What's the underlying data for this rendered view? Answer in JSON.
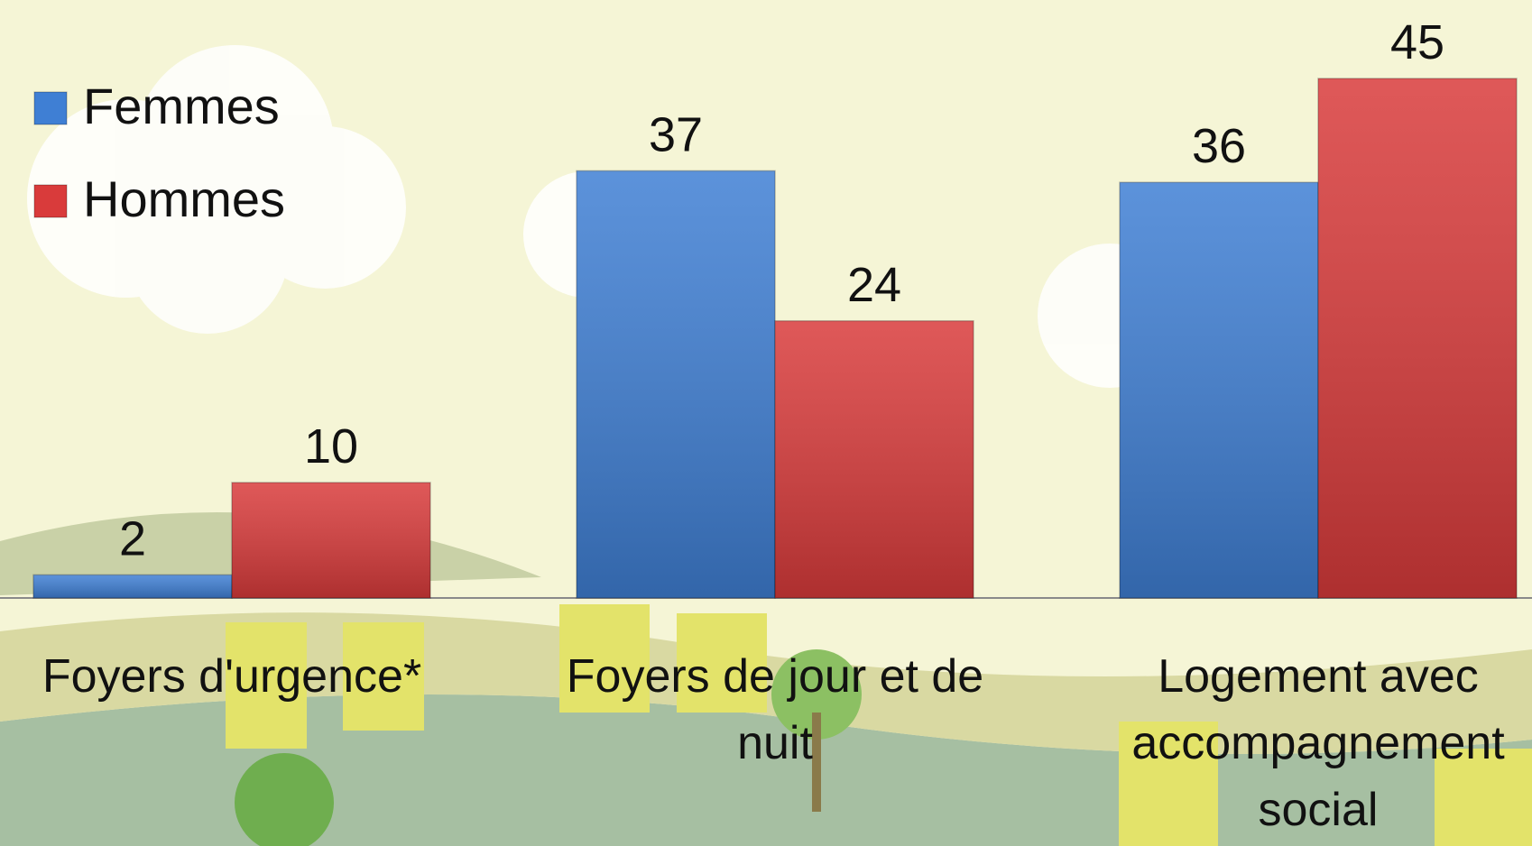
{
  "chart_data": {
    "type": "bar",
    "categories": [
      "Foyers d'urgence*",
      "Foyers de jour et de nuit",
      "Logement avec accompagnement social"
    ],
    "series": [
      {
        "name": "Femmes",
        "color": "#3f7fd4",
        "values": [
          2,
          37,
          36
        ]
      },
      {
        "name": "Hommes",
        "color": "#d93b3b",
        "values": [
          10,
          24,
          45
        ]
      }
    ],
    "ylim": [
      0,
      50
    ],
    "legend": "top-left"
  }
}
